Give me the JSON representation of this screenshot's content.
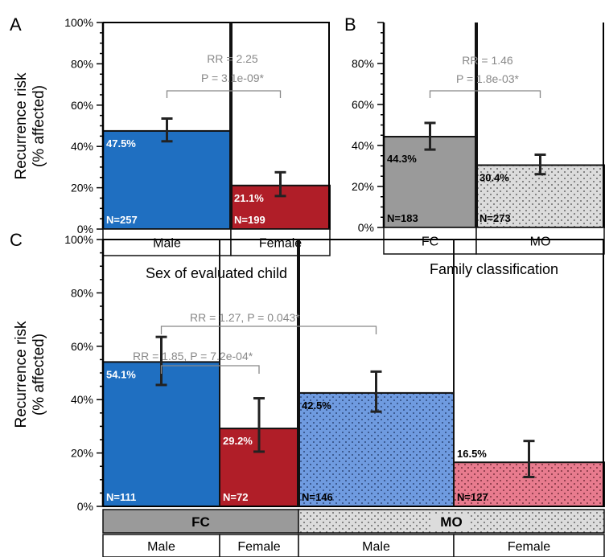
{
  "colors": {
    "male_fc": "#1f6fc1",
    "female_fc": "#b01e28",
    "fc_gray": "#9a9a9a",
    "mo_dots": "#dcdcdc",
    "male_mo": "#6f9be0",
    "female_mo": "#e87b8e",
    "bracket": "#888888"
  },
  "chart_data": [
    {
      "panel": "A",
      "type": "bar",
      "ylabel": [
        "Recurrence risk",
        "(% affected)"
      ],
      "yticks": [
        "0%",
        "20%",
        "40%",
        "60%",
        "80%",
        "100%"
      ],
      "ylim": [
        0,
        100
      ],
      "xlabel": "Sex of evaluated child",
      "categories": [
        "Male",
        "Female"
      ],
      "values": [
        47.5,
        21.1
      ],
      "value_labels": [
        "47.5%",
        "21.1%"
      ],
      "n_labels": [
        "N=257",
        "N=199"
      ],
      "error": [
        [
          42.5,
          53.5
        ],
        [
          16.0,
          27.5
        ]
      ],
      "fills": [
        "male_fc",
        "female_fc"
      ],
      "comparisons": [
        {
          "lines": [
            "RR = 2.25",
            "P = 3.1e-09*"
          ],
          "from": 0,
          "to": 1
        }
      ]
    },
    {
      "panel": "B",
      "type": "bar",
      "yticks": [
        "0%",
        "20%",
        "40%",
        "60%",
        "80%"
      ],
      "ylim": [
        0,
        100
      ],
      "xlabel": "Family classification",
      "categories": [
        "FC",
        "MO"
      ],
      "values": [
        44.3,
        30.4
      ],
      "value_labels": [
        "44.3%",
        "30.4%"
      ],
      "n_labels": [
        "N=183",
        "N=273"
      ],
      "error": [
        [
          38.0,
          51.0
        ],
        [
          26.0,
          35.5
        ]
      ],
      "fills": [
        "fc_gray",
        "mo_dots"
      ],
      "comparisons": [
        {
          "lines": [
            "RR = 1.46",
            "P = 1.8e-03*"
          ],
          "from": 0,
          "to": 1
        }
      ]
    },
    {
      "panel": "C",
      "type": "bar",
      "ylabel": [
        "Recurrence risk",
        "(% affected)"
      ],
      "yticks": [
        "0%",
        "20%",
        "40%",
        "60%",
        "80%",
        "100%"
      ],
      "ylim": [
        0,
        100
      ],
      "groups": [
        "FC",
        "MO"
      ],
      "categories": [
        "Male",
        "Female",
        "Male",
        "Female"
      ],
      "values": [
        54.1,
        29.2,
        42.5,
        16.5
      ],
      "value_labels": [
        "54.1%",
        "29.2%",
        "42.5%",
        "16.5%"
      ],
      "n_labels": [
        "N=111",
        "N=72",
        "N=146",
        "N=127"
      ],
      "error": [
        [
          45.5,
          63.5
        ],
        [
          20.5,
          40.5
        ],
        [
          35.5,
          50.5
        ],
        [
          11.0,
          24.5
        ]
      ],
      "fills": [
        "male_fc",
        "female_fc",
        "male_mo",
        "female_mo"
      ],
      "comparisons": [
        {
          "lines": [
            "RR = 1.85, P = 7.2e-04*"
          ],
          "from": 0,
          "to": 1
        },
        {
          "lines": [
            "RR = 1.27, P = 0.043*"
          ],
          "from": 0,
          "to": 2
        }
      ]
    }
  ]
}
